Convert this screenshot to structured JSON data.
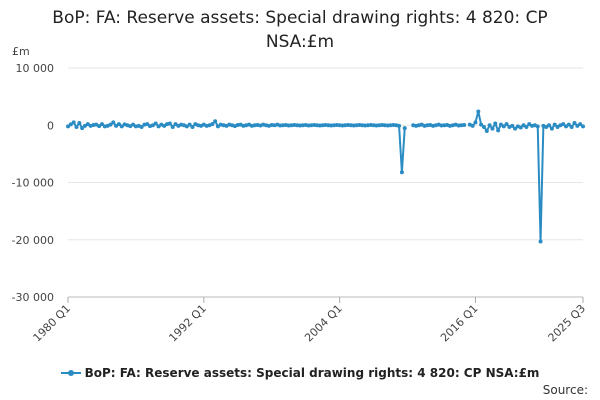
{
  "chart_data": {
    "type": "line",
    "title_line1": "BoP: FA: Reserve assets: Special drawing rights: 4 820: CP",
    "title_line2": "NSA:£m",
    "ylabel": "£m",
    "ylim": [
      -30000,
      10000
    ],
    "y_ticks": [
      10000,
      0,
      -10000,
      -20000,
      -30000
    ],
    "y_tick_labels": [
      "10 000",
      "0",
      "-10 000",
      "-20 000",
      "-30 000"
    ],
    "x_ticks": [
      "1980 Q1",
      "1992 Q1",
      "2004 Q1",
      "2016 Q1",
      "2025 Q3"
    ],
    "x_start": "1980 Q1",
    "x_end": "2025 Q3",
    "grid": true,
    "legend_position": "bottom",
    "color": "#2b8cc4",
    "series": [
      {
        "name": "BoP: FA: Reserve assets: Special drawing rights: 4 820: CP NSA:£m",
        "points": [
          [
            "1980 Q1",
            -200
          ],
          [
            "1980 Q2",
            150
          ],
          [
            "1980 Q3",
            500
          ],
          [
            "1980 Q4",
            -300
          ],
          [
            "1981 Q1",
            400
          ],
          [
            "1981 Q2",
            -500
          ],
          [
            "1981 Q3",
            -100
          ],
          [
            "1981 Q4",
            200
          ],
          [
            "1982 Q1",
            -100
          ],
          [
            "1982 Q2",
            50
          ],
          [
            "1982 Q3",
            100
          ],
          [
            "1982 Q4",
            -150
          ],
          [
            "1983 Q1",
            200
          ],
          [
            "1983 Q2",
            -200
          ],
          [
            "1983 Q3",
            -100
          ],
          [
            "1983 Q4",
            100
          ],
          [
            "1984 Q1",
            500
          ],
          [
            "1984 Q2",
            -100
          ],
          [
            "1984 Q3",
            200
          ],
          [
            "1984 Q4",
            -200
          ],
          [
            "1985 Q1",
            150
          ],
          [
            "1985 Q2",
            0
          ],
          [
            "1985 Q3",
            -150
          ],
          [
            "1985 Q4",
            100
          ],
          [
            "1986 Q1",
            -200
          ],
          [
            "1986 Q2",
            -100
          ],
          [
            "1986 Q3",
            -300
          ],
          [
            "1986 Q4",
            100
          ],
          [
            "1987 Q1",
            200
          ],
          [
            "1987 Q2",
            -150
          ],
          [
            "1987 Q3",
            0
          ],
          [
            "1987 Q4",
            300
          ],
          [
            "1988 Q1",
            -200
          ],
          [
            "1988 Q2",
            100
          ],
          [
            "1988 Q3",
            -100
          ],
          [
            "1988 Q4",
            200
          ],
          [
            "1989 Q1",
            300
          ],
          [
            "1989 Q2",
            -300
          ],
          [
            "1989 Q3",
            200
          ],
          [
            "1989 Q4",
            -100
          ],
          [
            "1990 Q1",
            100
          ],
          [
            "1990 Q2",
            0
          ],
          [
            "1990 Q3",
            -200
          ],
          [
            "1990 Q4",
            100
          ],
          [
            "1991 Q1",
            -300
          ],
          [
            "1991 Q2",
            200
          ],
          [
            "1991 Q3",
            0
          ],
          [
            "1991 Q4",
            -100
          ],
          [
            "1992 Q1",
            100
          ],
          [
            "1992 Q2",
            -100
          ],
          [
            "1992 Q3",
            0
          ],
          [
            "1992 Q4",
            200
          ],
          [
            "1993 Q1",
            700
          ],
          [
            "1993 Q2",
            -200
          ],
          [
            "1993 Q3",
            100
          ],
          [
            "1993 Q4",
            0
          ],
          [
            "1994 Q1",
            -100
          ],
          [
            "1994 Q2",
            100
          ],
          [
            "1994 Q3",
            0
          ],
          [
            "1994 Q4",
            -150
          ],
          [
            "1995 Q1",
            50
          ],
          [
            "1995 Q2",
            100
          ],
          [
            "1995 Q3",
            -100
          ],
          [
            "1995 Q4",
            0
          ],
          [
            "1996 Q1",
            100
          ],
          [
            "1996 Q2",
            -100
          ],
          [
            "1996 Q3",
            0
          ],
          [
            "1996 Q4",
            50
          ],
          [
            "1997 Q1",
            -50
          ],
          [
            "1997 Q2",
            100
          ],
          [
            "1997 Q3",
            0
          ],
          [
            "1997 Q4",
            -100
          ],
          [
            "1998 Q1",
            50
          ],
          [
            "1998 Q2",
            0
          ],
          [
            "1998 Q3",
            100
          ],
          [
            "1998 Q4",
            -50
          ],
          [
            "1999 Q1",
            0
          ],
          [
            "1999 Q2",
            50
          ],
          [
            "1999 Q3",
            -50
          ],
          [
            "1999 Q4",
            0
          ],
          [
            "2000 Q1",
            50
          ],
          [
            "2000 Q2",
            0
          ],
          [
            "2000 Q3",
            -50
          ],
          [
            "2000 Q4",
            0
          ],
          [
            "2001 Q1",
            50
          ],
          [
            "2001 Q2",
            -50
          ],
          [
            "2001 Q3",
            0
          ],
          [
            "2001 Q4",
            50
          ],
          [
            "2002 Q1",
            0
          ],
          [
            "2002 Q2",
            -50
          ],
          [
            "2002 Q3",
            0
          ],
          [
            "2002 Q4",
            50
          ],
          [
            "2003 Q1",
            0
          ],
          [
            "2003 Q2",
            -50
          ],
          [
            "2003 Q3",
            0
          ],
          [
            "2003 Q4",
            50
          ],
          [
            "2004 Q1",
            0
          ],
          [
            "2004 Q2",
            -50
          ],
          [
            "2004 Q3",
            0
          ],
          [
            "2004 Q4",
            50
          ],
          [
            "2005 Q1",
            0
          ],
          [
            "2005 Q2",
            -50
          ],
          [
            "2005 Q3",
            0
          ],
          [
            "2005 Q4",
            50
          ],
          [
            "2006 Q1",
            0
          ],
          [
            "2006 Q2",
            -50
          ],
          [
            "2006 Q3",
            0
          ],
          [
            "2006 Q4",
            50
          ],
          [
            "2007 Q1",
            0
          ],
          [
            "2007 Q2",
            -50
          ],
          [
            "2007 Q3",
            0
          ],
          [
            "2007 Q4",
            50
          ],
          [
            "2008 Q1",
            0
          ],
          [
            "2008 Q2",
            -50
          ],
          [
            "2008 Q3",
            0
          ],
          [
            "2008 Q4",
            50
          ],
          [
            "2009 Q1",
            0
          ],
          [
            "2009 Q2",
            -100
          ],
          [
            "2009 Q3",
            -8200
          ],
          [
            "2009 Q4",
            -500
          ],
          [
            "2010 Q1",
            null
          ],
          [
            "2010 Q2",
            null
          ],
          [
            "2010 Q3",
            0
          ],
          [
            "2010 Q4",
            -100
          ],
          [
            "2011 Q1",
            0
          ],
          [
            "2011 Q2",
            100
          ],
          [
            "2011 Q3",
            -100
          ],
          [
            "2011 Q4",
            0
          ],
          [
            "2012 Q1",
            50
          ],
          [
            "2012 Q2",
            -100
          ],
          [
            "2012 Q3",
            0
          ],
          [
            "2012 Q4",
            100
          ],
          [
            "2013 Q1",
            -50
          ],
          [
            "2013 Q2",
            0
          ],
          [
            "2013 Q3",
            50
          ],
          [
            "2013 Q4",
            -100
          ],
          [
            "2014 Q1",
            0
          ],
          [
            "2014 Q2",
            100
          ],
          [
            "2014 Q3",
            -50
          ],
          [
            "2014 Q4",
            0
          ],
          [
            "2015 Q1",
            50
          ],
          [
            "2015 Q2",
            null
          ],
          [
            "2015 Q3",
            100
          ],
          [
            "2015 Q4",
            -100
          ],
          [
            "2016 Q1",
            500
          ],
          [
            "2016 Q2",
            2400
          ],
          [
            "2016 Q3",
            100
          ],
          [
            "2016 Q4",
            -300
          ],
          [
            "2017 Q1",
            -1000
          ],
          [
            "2017 Q2",
            0
          ],
          [
            "2017 Q3",
            -600
          ],
          [
            "2017 Q4",
            300
          ],
          [
            "2018 Q1",
            -900
          ],
          [
            "2018 Q2",
            100
          ],
          [
            "2018 Q3",
            -200
          ],
          [
            "2018 Q4",
            200
          ],
          [
            "2019 Q1",
            -300
          ],
          [
            "2019 Q2",
            -100
          ],
          [
            "2019 Q3",
            -600
          ],
          [
            "2019 Q4",
            -200
          ],
          [
            "2020 Q1",
            -400
          ],
          [
            "2020 Q2",
            0
          ],
          [
            "2020 Q3",
            -300
          ],
          [
            "2020 Q4",
            200
          ],
          [
            "2021 Q1",
            -100
          ],
          [
            "2021 Q2",
            0
          ],
          [
            "2021 Q3",
            -200
          ],
          [
            "2021 Q4",
            -20300
          ],
          [
            "2022 Q1",
            -100
          ],
          [
            "2022 Q2",
            -300
          ],
          [
            "2022 Q3",
            0
          ],
          [
            "2022 Q4",
            -600
          ],
          [
            "2023 Q1",
            100
          ],
          [
            "2023 Q2",
            -300
          ],
          [
            "2023 Q3",
            0
          ],
          [
            "2023 Q4",
            200
          ],
          [
            "2024 Q1",
            -200
          ],
          [
            "2024 Q2",
            100
          ],
          [
            "2024 Q3",
            -300
          ],
          [
            "2024 Q4",
            400
          ],
          [
            "2025 Q1",
            -100
          ],
          [
            "2025 Q2",
            200
          ],
          [
            "2025 Q3",
            -200
          ]
        ]
      }
    ]
  },
  "legend": {
    "label": "BoP: FA: Reserve assets: Special drawing rights: 4 820: CP NSA:£m"
  },
  "source": {
    "label": "Source:"
  }
}
